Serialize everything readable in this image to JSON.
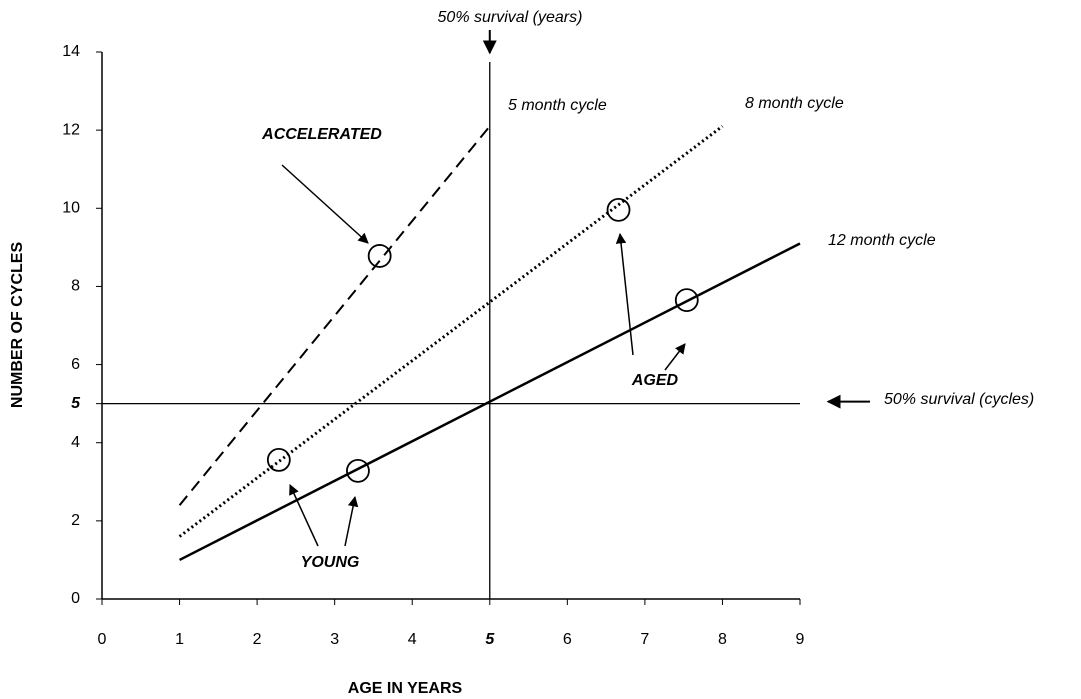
{
  "chart_data": {
    "type": "line",
    "x_label": "AGE IN YEARS",
    "y_label": "NUMBER OF CYCLES",
    "xlim": [
      0,
      9
    ],
    "ylim": [
      0,
      14
    ],
    "xticks": [
      0,
      1,
      2,
      3,
      4,
      5,
      6,
      7,
      8,
      9
    ],
    "yticks": [
      0,
      2,
      4,
      5,
      6,
      8,
      10,
      12,
      14
    ],
    "series": [
      {
        "name": "5 month cycle",
        "color": "#000000",
        "dash": "dashed",
        "x": [
          1,
          5
        ],
        "values": [
          2.4,
          12.1
        ]
      },
      {
        "name": "8 month cycle",
        "color": "#000000",
        "dash": "dotted",
        "x": [
          1,
          8
        ],
        "values": [
          1.6,
          12.1
        ]
      },
      {
        "name": "12 month cycle",
        "color": "#000000",
        "dash": "solid",
        "x": [
          1,
          9
        ],
        "values": [
          1,
          9.1
        ]
      }
    ],
    "markers": {
      "x": [
        2.28,
        3.3,
        3.58,
        6.66,
        7.54
      ],
      "y": [
        3.56,
        3.28,
        8.78,
        9.96,
        7.65
      ]
    },
    "reference_lines": [
      {
        "axis": "x",
        "value": 5,
        "label": "50% survival (years)"
      },
      {
        "axis": "y",
        "value": 5,
        "label": "50% survival (cycles)"
      }
    ],
    "annotations": [
      "ACCELERATED",
      "YOUNG",
      "AGED"
    ]
  }
}
